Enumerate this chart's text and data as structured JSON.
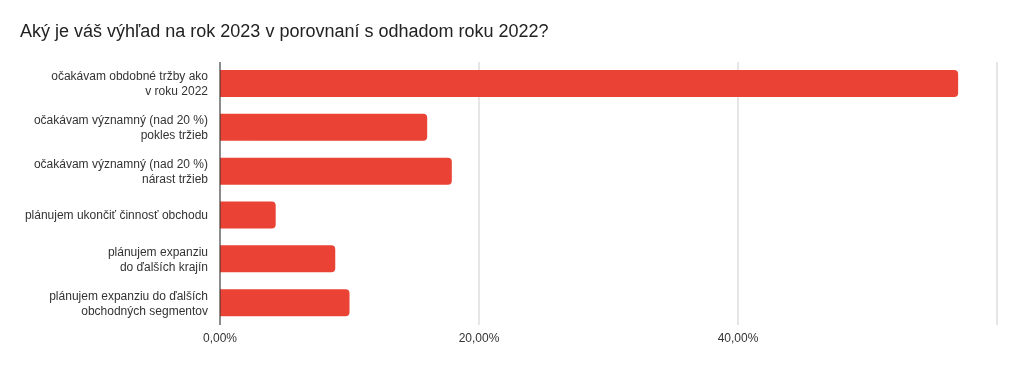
{
  "chart_data": {
    "type": "bar",
    "orientation": "horizontal",
    "title": "Aký je váš výhľad na rok 2023 v porovnaní s odhadom roku 2022?",
    "categories": [
      "očakávam obdobné tržby ako\nv roku 2022",
      "očakávam významný (nad 20 %)\npokles tržieb",
      "očakávam významný (nad 20 %)\nnárast tržieb",
      "plánujem ukončiť činnosť obchodu",
      "plánujem expanziu\ndo ďalších krajín",
      "plánujem expanziu do ďalších\nobchodných segmentov"
    ],
    "values": [
      57.0,
      16.0,
      17.9,
      4.3,
      8.9,
      10.0
    ],
    "color": "#ea4335",
    "xlim": [
      0,
      60
    ],
    "xticks": [
      {
        "value": 0,
        "label": "0,00%"
      },
      {
        "value": 20,
        "label": "20,00%"
      },
      {
        "value": 40,
        "label": "40,00%"
      },
      {
        "value": 60,
        "label": null
      }
    ],
    "grid": "x"
  }
}
